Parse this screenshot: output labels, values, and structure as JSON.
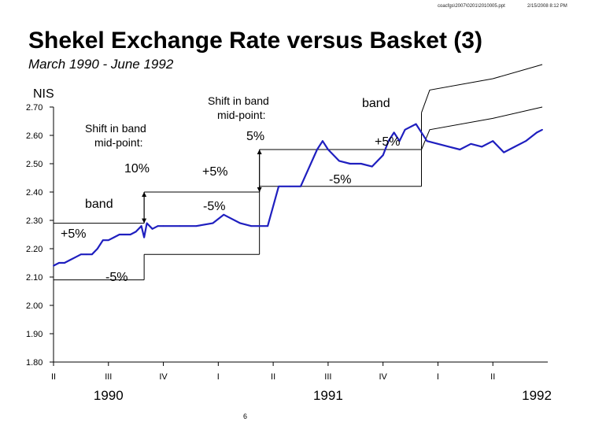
{
  "header": {
    "file_path": "coacfgs\\2007\\0201\\2010005.ppt",
    "date": "2/15/2008 8:12 PM"
  },
  "title": "Shekel Exchange Rate versus Basket (3)",
  "subtitle": "March 1990 - June 1992",
  "page_number": "6",
  "chart_data": {
    "type": "line",
    "title": "Shekel Exchange Rate versus Basket (3)",
    "subtitle": "March 1990 - June 1992",
    "ylabel": "NIS",
    "ylim": [
      1.8,
      2.7
    ],
    "yticks": [
      "1.80",
      "1.90",
      "2.00",
      "2.10",
      "2.20",
      "2.30",
      "2.40",
      "2.50",
      "2.60",
      "2.70"
    ],
    "xlim": [
      0,
      9
    ],
    "xticks": [
      "II",
      "III",
      "IV",
      "I",
      "II",
      "III",
      "IV",
      "I",
      "II"
    ],
    "year_labels": [
      "1990",
      "1991",
      "1992"
    ],
    "series": [
      {
        "color": "#1f1fbf",
        "x": [
          0,
          0.1,
          0.2,
          0.3,
          0.4,
          0.5,
          0.6,
          0.7,
          0.8,
          0.9,
          1.0,
          1.1,
          1.2,
          1.3,
          1.4,
          1.5,
          1.6,
          1.65,
          1.7,
          1.8,
          1.9,
          2.0,
          2.3,
          2.6,
          2.9,
          3.1,
          3.4,
          3.6,
          3.75,
          3.9,
          4.1,
          4.3,
          4.5,
          4.8,
          4.9,
          5.0,
          5.2,
          5.4,
          5.6,
          5.8,
          6.0,
          6.1,
          6.2,
          6.3,
          6.4,
          6.6,
          6.8,
          7.0,
          7.2,
          7.4,
          7.6,
          7.8,
          8.0,
          8.2,
          8.4,
          8.6,
          8.8,
          8.9
        ],
        "y": [
          2.14,
          2.15,
          2.15,
          2.16,
          2.17,
          2.18,
          2.18,
          2.18,
          2.2,
          2.23,
          2.23,
          2.24,
          2.25,
          2.25,
          2.25,
          2.26,
          2.28,
          2.24,
          2.29,
          2.27,
          2.28,
          2.28,
          2.28,
          2.28,
          2.29,
          2.32,
          2.29,
          2.28,
          2.28,
          2.28,
          2.42,
          2.42,
          2.42,
          2.55,
          2.58,
          2.55,
          2.51,
          2.5,
          2.5,
          2.49,
          2.53,
          2.58,
          2.61,
          2.58,
          2.62,
          2.64,
          2.58,
          2.57,
          2.56,
          2.55,
          2.57,
          2.56,
          2.58,
          2.54,
          2.56,
          2.58,
          2.61,
          2.62
        ]
      }
    ],
    "band": {
      "color": "#000000",
      "segments": [
        {
          "x_start": 0,
          "x_end": 1.65,
          "upper": 2.29,
          "lower": 2.09
        },
        {
          "x_start": 1.65,
          "x_end": 3.75,
          "upper": 2.4,
          "lower": 2.18
        },
        {
          "x_start": 3.75,
          "x_end": 6.7,
          "upper": 2.55,
          "lower": 2.42
        }
      ],
      "upper_tail": {
        "x": [
          6.7,
          6.85,
          8.0,
          8.9
        ],
        "y": [
          2.68,
          2.76,
          2.8,
          2.85
        ]
      },
      "lower_tail": {
        "x": [
          6.7,
          6.85,
          8.0,
          8.9
        ],
        "y": [
          2.55,
          2.62,
          2.66,
          2.7
        ]
      }
    },
    "annotations": {
      "shift_10_line1": "Shift in band",
      "shift_10_line2": "mid-point:",
      "shift_10_value": "10%",
      "shift_5_line1": "Shift in band",
      "shift_5_line2": "mid-point:",
      "shift_5_value": "5%",
      "band_1": "band",
      "band_2": "band",
      "plus_1": "+5%",
      "minus_1": "-5%",
      "plus_2": "+5%",
      "minus_2": "-5%",
      "plus_3": "+5%",
      "minus_3": "-5%"
    }
  }
}
